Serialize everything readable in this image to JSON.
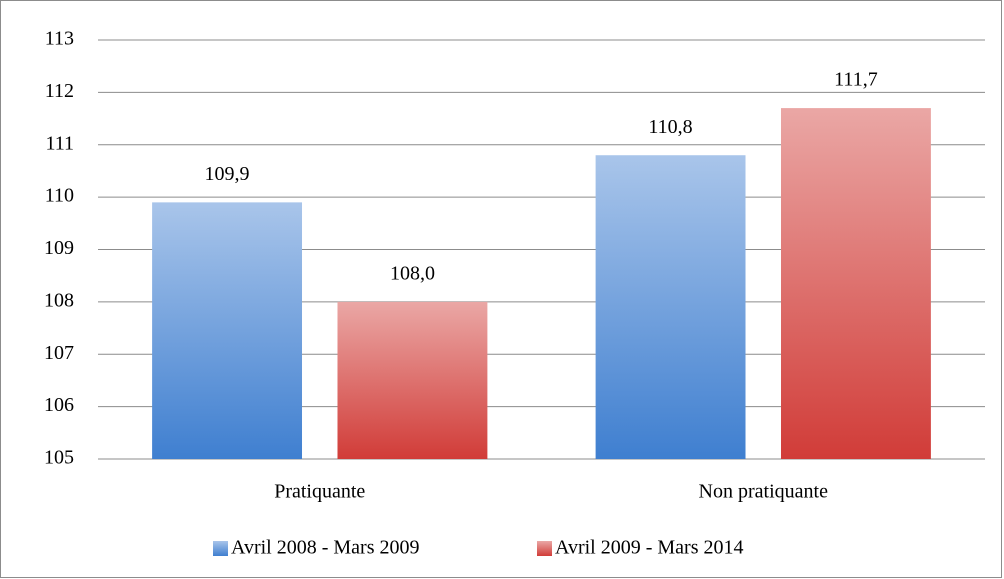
{
  "chart_data": {
    "type": "bar",
    "categories": [
      "Pratiquante",
      "Non pratiquante"
    ],
    "series": [
      {
        "name": "Avril 2008 - Mars 2009",
        "color": "#3f7fd0",
        "values": [
          109.9,
          110.8
        ],
        "value_labels": [
          "109,9",
          "110,8"
        ]
      },
      {
        "name": "Avril 2009 - Mars 2014",
        "color": "#d13c38",
        "values": [
          108.0,
          111.7
        ],
        "value_labels": [
          "108,0",
          "111,7"
        ]
      }
    ],
    "ylim": [
      105,
      113
    ],
    "yticks": [
      105,
      106,
      107,
      108,
      109,
      110,
      111,
      112,
      113
    ],
    "grid": true,
    "legend": "bottom"
  }
}
